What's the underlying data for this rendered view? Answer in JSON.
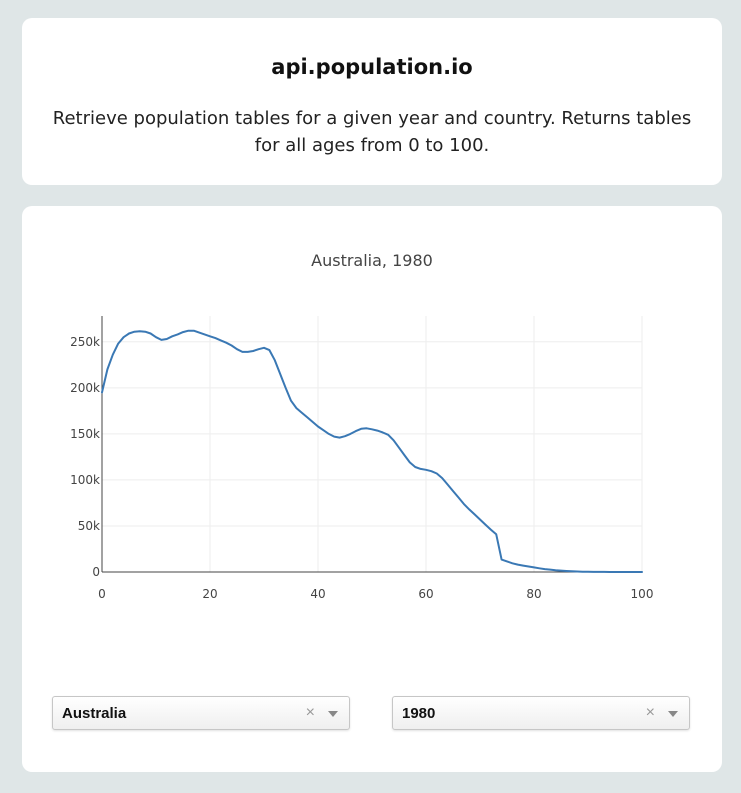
{
  "header": {
    "title": "api.population.io",
    "description": "Retrieve population tables for a given year and country. Returns tables for all ages from 0 to 100."
  },
  "controls": {
    "country": "Australia",
    "year": "1980",
    "clear_symbol": "×"
  },
  "chart_data": {
    "type": "line",
    "title": "Australia, 1980",
    "xlabel": "",
    "ylabel": "",
    "xlim": [
      0,
      100
    ],
    "ylim": [
      0,
      278000
    ],
    "grid": true,
    "line_color": "#3a78b4",
    "x_ticks": [
      0,
      20,
      40,
      60,
      80,
      100
    ],
    "y_ticks": [
      {
        "value": 0,
        "label": "0"
      },
      {
        "value": 50000,
        "label": "50k"
      },
      {
        "value": 100000,
        "label": "100k"
      },
      {
        "value": 150000,
        "label": "150k"
      },
      {
        "value": 200000,
        "label": "200k"
      },
      {
        "value": 250000,
        "label": "250k"
      }
    ],
    "series": [
      {
        "x": [
          0,
          1,
          2,
          3,
          4,
          5,
          6,
          7,
          8,
          9,
          10,
          11,
          12,
          13,
          14,
          15,
          16,
          17,
          18,
          19,
          20,
          21,
          22,
          23,
          24,
          25,
          26,
          27,
          28,
          29,
          30,
          31,
          32,
          33,
          34,
          35,
          36,
          37,
          38,
          39,
          40,
          41,
          42,
          43,
          44,
          45,
          46,
          47,
          48,
          49,
          50,
          51,
          52,
          53,
          54,
          55,
          56,
          57,
          58,
          59,
          60,
          61,
          62,
          63,
          64,
          65,
          66,
          67,
          68,
          69,
          70,
          71,
          72,
          73,
          74,
          75,
          76,
          77,
          78,
          79,
          80,
          81,
          82,
          83,
          84,
          85,
          86,
          87,
          88,
          89,
          90,
          91,
          92,
          93,
          94,
          95,
          96,
          97,
          98,
          99,
          100
        ],
        "y": [
          195000,
          220000,
          236000,
          248000,
          255000,
          259000,
          261000,
          261500,
          261000,
          259000,
          255000,
          252000,
          253000,
          256000,
          258000,
          260500,
          262000,
          262000,
          260000,
          258000,
          256000,
          254000,
          251500,
          249000,
          246000,
          242000,
          239000,
          239000,
          240000,
          242000,
          243500,
          241000,
          230000,
          215000,
          200000,
          186000,
          178000,
          173000,
          168000,
          163000,
          158000,
          154000,
          150000,
          147000,
          146000,
          147500,
          150000,
          153000,
          155500,
          156000,
          155000,
          153500,
          151500,
          149000,
          143000,
          135000,
          127000,
          119000,
          114000,
          112000,
          111000,
          109500,
          107000,
          102000,
          95000,
          88000,
          81000,
          74000,
          68000,
          62500,
          57000,
          51500,
          46000,
          41000,
          13500,
          11500,
          9500,
          8000,
          7000,
          6000,
          5000,
          4000,
          3200,
          2600,
          2000,
          1500,
          1100,
          800,
          500,
          300,
          200,
          150,
          100,
          60,
          40,
          25,
          15,
          10,
          5,
          2,
          1
        ]
      }
    ]
  }
}
